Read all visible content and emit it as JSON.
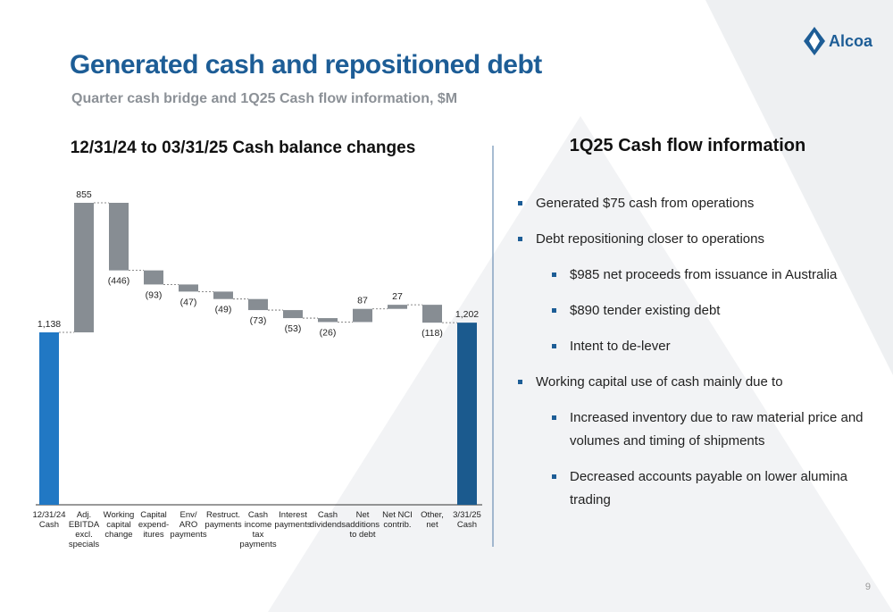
{
  "header": {
    "title": "Generated cash and repositioned debt",
    "subtitle": "Quarter cash bridge and 1Q25 Cash flow information, $M",
    "logo": "Alcoa",
    "page": "9"
  },
  "chart_data": {
    "type": "waterfall",
    "title": "12/31/24 to 03/31/25 Cash balance changes",
    "categories": [
      "12/31/24\nCash",
      "Adj.\nEBITDA\nexcl.\nspecials",
      "Working\ncapital\nchange",
      "Capital\nexpend-\nitures",
      "Env/\nARO\npayments",
      "Restruct.\npayments",
      "Cash\nincome\ntax\npayments",
      "Interest\npayments",
      "Cash\ndividends",
      "Net\nadditions\nto debt",
      "Net NCI\ncontrib.",
      "Other,\nnet",
      "3/31/25\nCash"
    ],
    "values": [
      1138,
      855,
      -446,
      -93,
      -47,
      -49,
      -73,
      -53,
      -26,
      87,
      27,
      -118,
      1202
    ],
    "value_labels": [
      "1,138",
      "855",
      "(446)",
      "(93)",
      "(47)",
      "(49)",
      "(73)",
      "(53)",
      "(26)",
      "87",
      "27",
      "(118)",
      "1,202"
    ],
    "colors": [
      "#2178c4",
      "#878d93",
      "#878d93",
      "#878d93",
      "#878d93",
      "#878d93",
      "#878d93",
      "#878d93",
      "#878d93",
      "#878d93",
      "#878d93",
      "#878d93",
      "#1b5a8e"
    ]
  },
  "info": {
    "title": "1Q25 Cash flow information",
    "bullets": [
      {
        "level": 1,
        "text": "Generated $75 cash from operations"
      },
      {
        "level": 1,
        "text": "Debt repositioning closer to operations"
      },
      {
        "level": 2,
        "text": "$985 net proceeds from issuance in Australia"
      },
      {
        "level": 2,
        "text": "$890 tender existing debt"
      },
      {
        "level": 2,
        "text": "Intent to de-lever"
      },
      {
        "level": 1,
        "text": "Working capital use of cash mainly due to"
      },
      {
        "level": 2,
        "text": "Increased inventory due to raw material price and volumes and timing of shipments"
      },
      {
        "level": 2,
        "text": "Decreased accounts payable on lower alumina trading"
      }
    ]
  }
}
